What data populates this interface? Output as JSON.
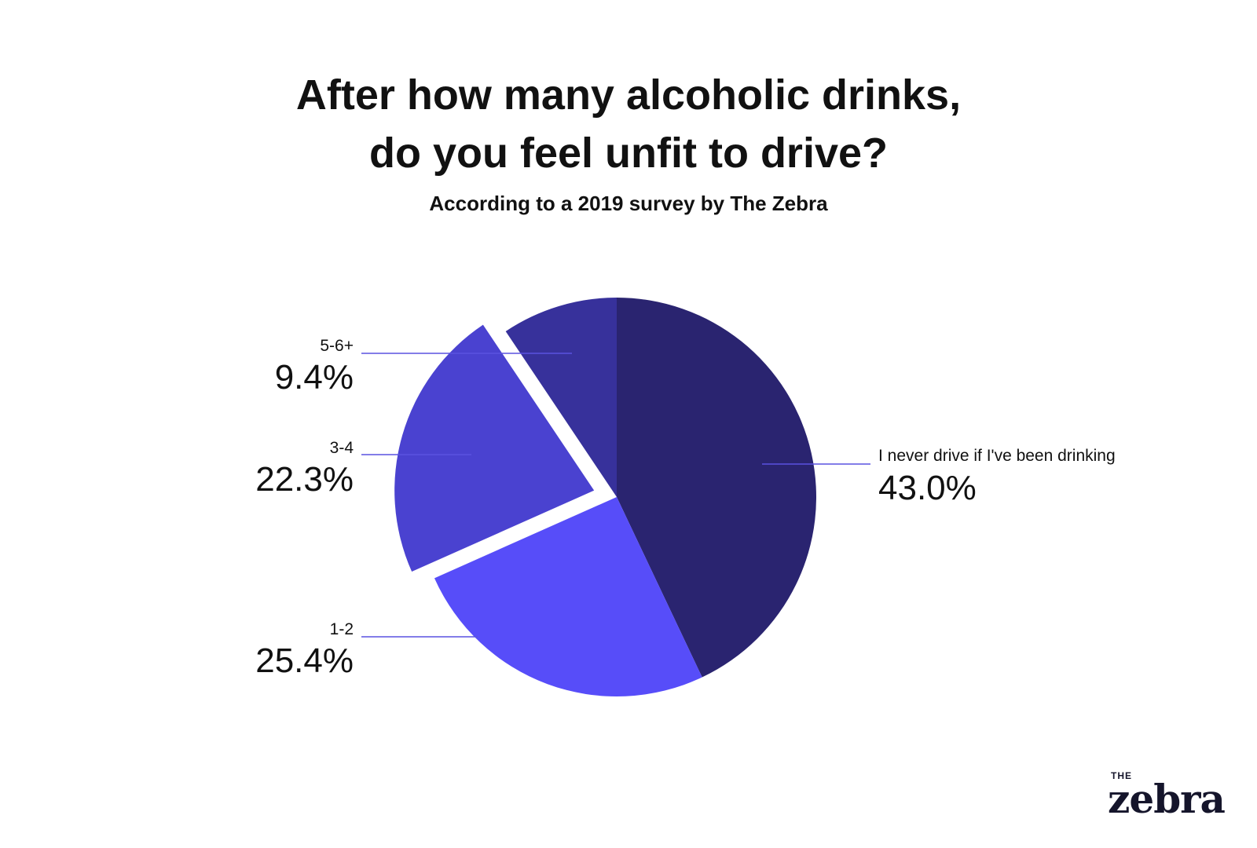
{
  "chart_data": {
    "type": "pie",
    "title_lines": [
      "After how many alcoholic drinks,",
      "do you feel unfit to drive?"
    ],
    "subtitle": "According to a 2019 survey by The Zebra",
    "categories": [
      "I never drive if I've been drinking",
      "1-2",
      "3-4",
      "5-6+"
    ],
    "values": [
      43.0,
      25.4,
      22.3,
      9.4
    ],
    "value_labels": [
      "43.0%",
      "25.4%",
      "22.3%",
      "9.4%"
    ],
    "colors": [
      "#2a2470",
      "#574df9",
      "#4a42d0",
      "#37319b"
    ],
    "exploded": "3-4",
    "line_color": "#5a52e0"
  },
  "logo": {
    "small": "THE",
    "big": "zebra"
  }
}
